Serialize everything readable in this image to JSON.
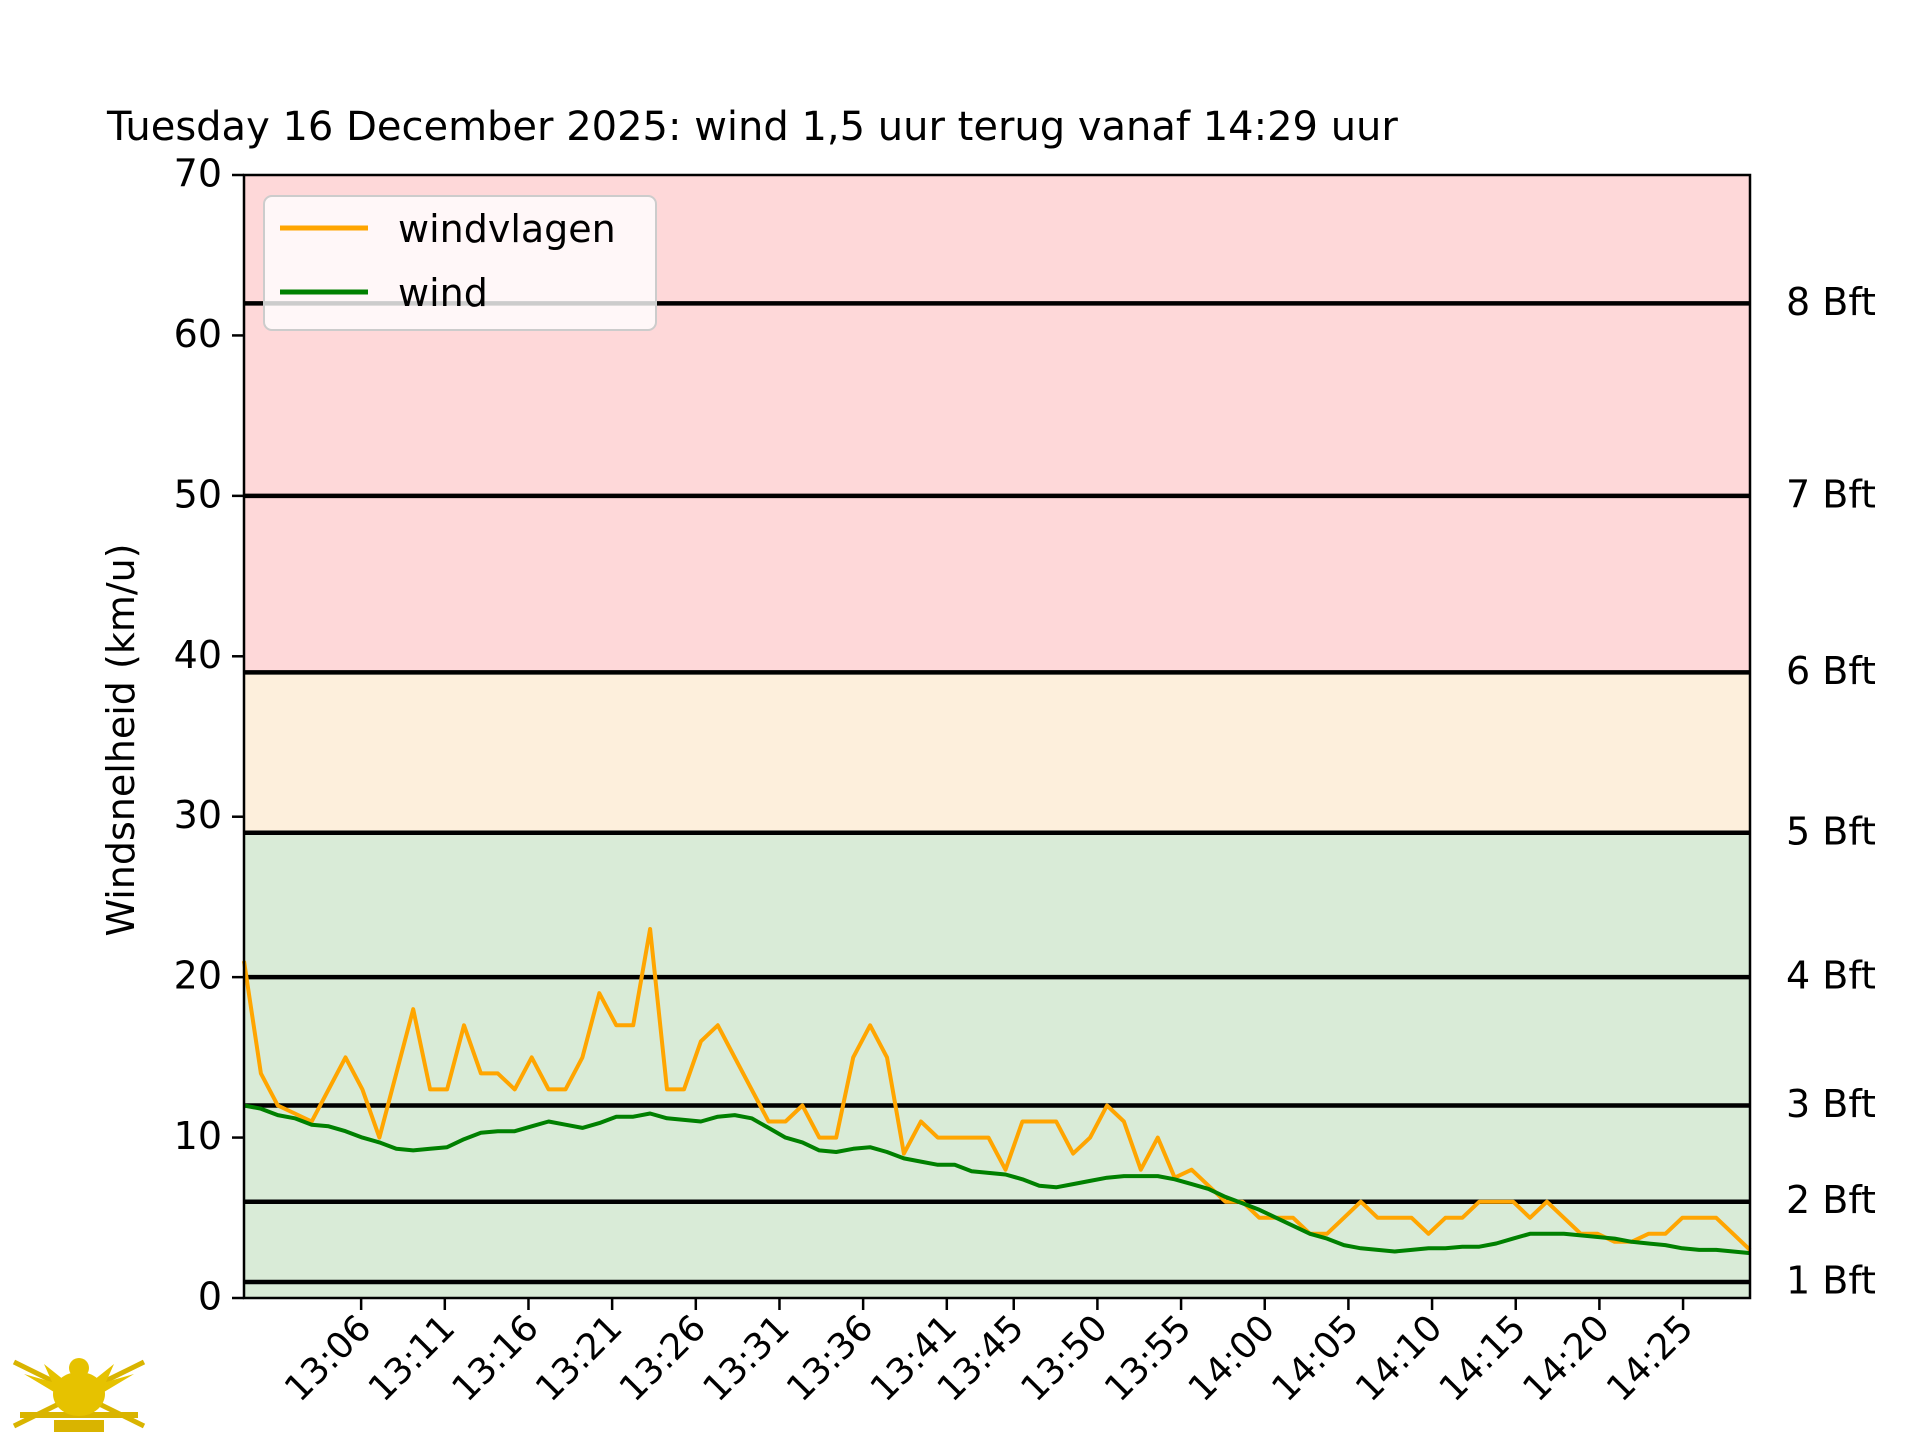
{
  "chart_data": {
    "type": "line",
    "title": "Tuesday 16 December 2025: wind 1,5 uur terug vanaf 14:29 uur",
    "ylabel": "Windsnelheid (km/u)",
    "xlabel": "",
    "ylim": [
      0,
      70
    ],
    "xlim": [
      "12:59",
      "14:29"
    ],
    "yticks": [
      0,
      10,
      20,
      30,
      40,
      50,
      60,
      70
    ],
    "xtick_labels": [
      "13:06",
      "13:11",
      "13:16",
      "13:21",
      "13:26",
      "13:31",
      "13:36",
      "13:41",
      "13:45",
      "13:50",
      "13:55",
      "14:00",
      "14:05",
      "14:10",
      "14:15",
      "14:20",
      "14:25"
    ],
    "grid": false,
    "legend_position": "top-left",
    "zones": [
      {
        "from": 0,
        "to": 29,
        "color": "#d9ebd7"
      },
      {
        "from": 29,
        "to": 39,
        "color": "#fdefdc"
      },
      {
        "from": 39,
        "to": 70,
        "color": "#fed8d9"
      }
    ],
    "beaufort_lines": [
      {
        "value": 1,
        "label": "1 Bft"
      },
      {
        "value": 6,
        "label": "2 Bft"
      },
      {
        "value": 12,
        "label": "3 Bft"
      },
      {
        "value": 20,
        "label": "4 Bft"
      },
      {
        "value": 29,
        "label": "5 Bft"
      },
      {
        "value": 39,
        "label": "6 Bft"
      },
      {
        "value": 50,
        "label": "7 Bft"
      },
      {
        "value": 62,
        "label": "8 Bft"
      }
    ],
    "series": [
      {
        "name": "windvlagen",
        "color": "#ffa500",
        "values": [
          21,
          14,
          12,
          11.5,
          11,
          13,
          15,
          13,
          10,
          14,
          18,
          13,
          13,
          17,
          14,
          14,
          13,
          15,
          13,
          13,
          15,
          19,
          17,
          17,
          23,
          13,
          13,
          16,
          17,
          15,
          13,
          11,
          11,
          12,
          10,
          10,
          15,
          17,
          15,
          9,
          11,
          10,
          10,
          10,
          10,
          8,
          11,
          11,
          11,
          9,
          10,
          12,
          11,
          8,
          10,
          7.5,
          8,
          7,
          6,
          6,
          5,
          5,
          5,
          4,
          4,
          5,
          6,
          5,
          5,
          5,
          4,
          5,
          5,
          6,
          6,
          6,
          5,
          6,
          5,
          4,
          4,
          3.5,
          3.5,
          4,
          4,
          5,
          5,
          5,
          4,
          3
        ]
      },
      {
        "name": "wind",
        "color": "#008000",
        "values": [
          12,
          11.8,
          11.4,
          11.2,
          10.8,
          10.7,
          10.4,
          10,
          9.7,
          9.3,
          9.2,
          9.3,
          9.4,
          9.9,
          10.3,
          10.4,
          10.4,
          10.7,
          11,
          10.8,
          10.6,
          10.9,
          11.3,
          11.3,
          11.5,
          11.2,
          11.1,
          11,
          11.3,
          11.4,
          11.2,
          10.6,
          10,
          9.7,
          9.2,
          9.1,
          9.3,
          9.4,
          9.1,
          8.7,
          8.5,
          8.3,
          8.3,
          7.9,
          7.8,
          7.7,
          7.4,
          7,
          6.9,
          7.1,
          7.3,
          7.5,
          7.6,
          7.6,
          7.6,
          7.4,
          7.1,
          6.8,
          6.3,
          5.9,
          5.5,
          5,
          4.5,
          4,
          3.7,
          3.3,
          3.1,
          3,
          2.9,
          3,
          3.1,
          3.1,
          3.2,
          3.2,
          3.4,
          3.7,
          4,
          4,
          4,
          3.9,
          3.8,
          3.7,
          3.5,
          3.4,
          3.3,
          3.1,
          3,
          3,
          2.9,
          2.8
        ]
      }
    ]
  },
  "logo": {
    "label": "crest-logo"
  }
}
